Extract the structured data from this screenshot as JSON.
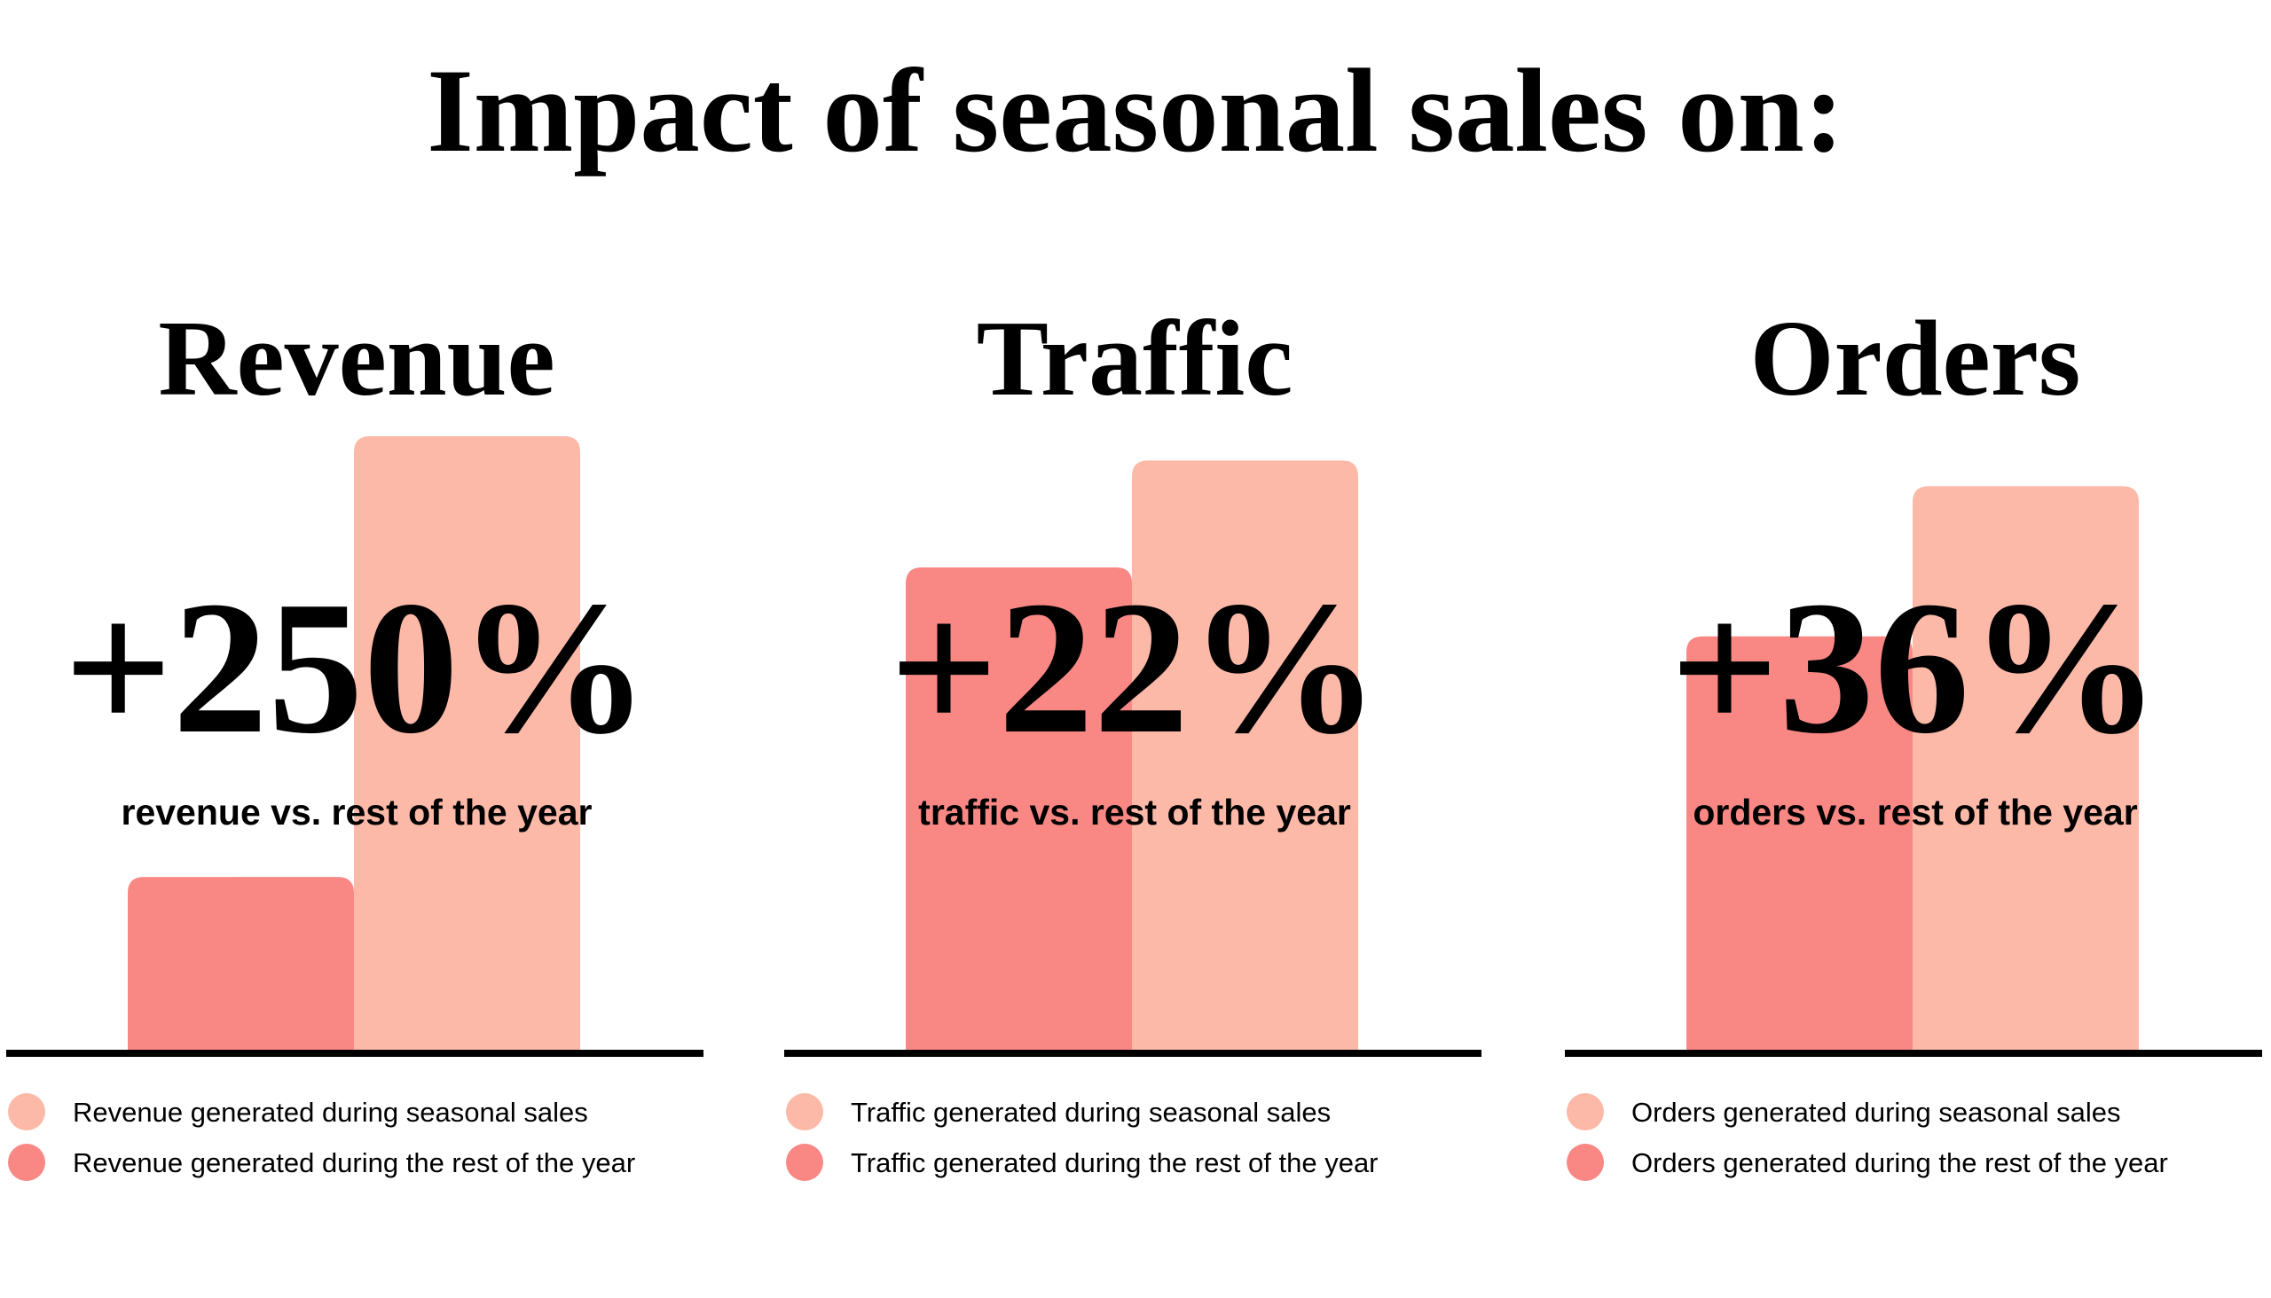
{
  "title": "Impact of seasonal sales on:",
  "chart_data": [
    {
      "type": "bar",
      "title": "Revenue",
      "annotation": "+250%",
      "subtitle": "revenue vs. rest of the year",
      "categories": [
        null
      ],
      "series": [
        {
          "name": "Revenue generated during seasonal sales",
          "color": "#fdb9a8",
          "values": [
            350
          ]
        },
        {
          "name": "Revenue generated during the rest of the year",
          "color": "#f98885",
          "values": [
            100
          ]
        }
      ],
      "ylim": [
        0,
        350
      ]
    },
    {
      "type": "bar",
      "title": "Traffic",
      "annotation": "+22%",
      "subtitle": "traffic vs. rest of the year",
      "categories": [
        null
      ],
      "series": [
        {
          "name": "Traffic generated during seasonal sales",
          "color": "#fdb9a8",
          "values": [
            122
          ]
        },
        {
          "name": "Traffic generated during the rest of the year",
          "color": "#f98885",
          "values": [
            100
          ]
        }
      ],
      "ylim": [
        0,
        127
      ]
    },
    {
      "type": "bar",
      "title": "Orders",
      "annotation": "+36%",
      "subtitle": "orders vs. rest of the year",
      "categories": [
        null
      ],
      "series": [
        {
          "name": "Orders generated during seasonal sales",
          "color": "#fdb9a8",
          "values": [
            136
          ]
        },
        {
          "name": "Orders generated during the rest of the year",
          "color": "#f98885",
          "values": [
            100
          ]
        }
      ],
      "ylim": [
        0,
        148
      ]
    }
  ]
}
